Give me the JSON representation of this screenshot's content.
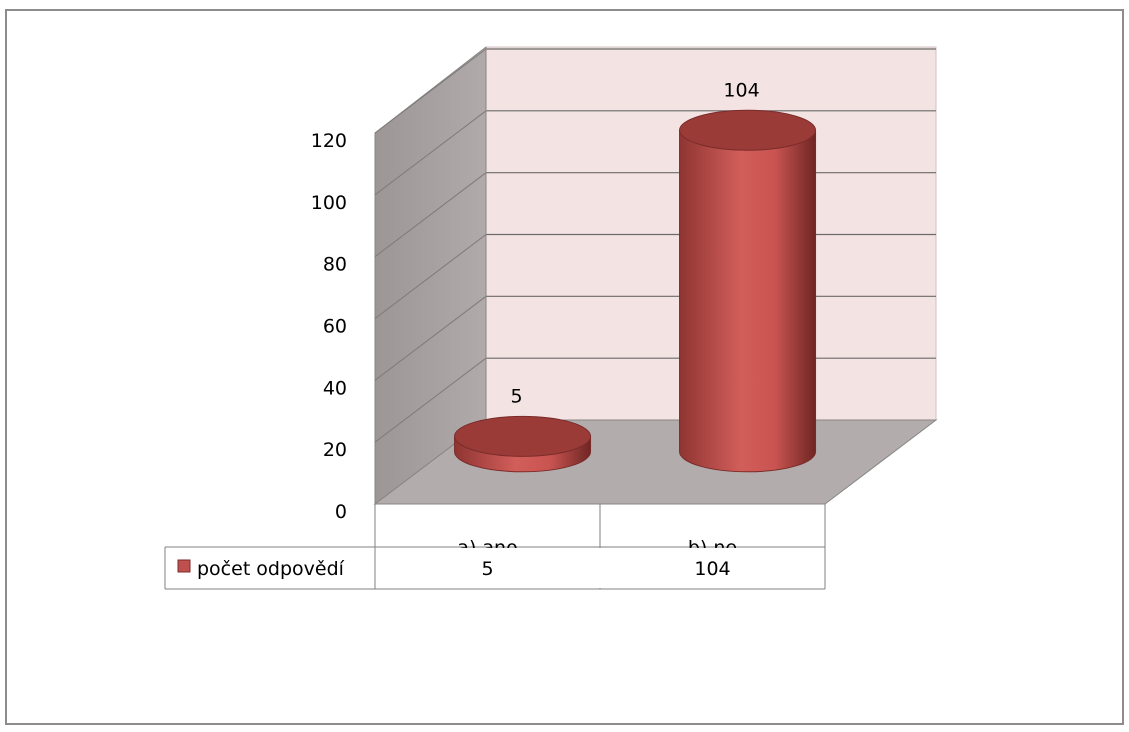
{
  "chart_data": {
    "type": "bar",
    "style": "3d-cylinder",
    "title": "",
    "xlabel": "",
    "ylabel": "",
    "categories": [
      "a) ano",
      "b) ne"
    ],
    "series": [
      {
        "name": "počet odpovědí",
        "values": [
          5,
          104
        ],
        "color": "#c0504d"
      }
    ],
    "data_labels": [
      "5",
      "104"
    ],
    "ylim": [
      0,
      120
    ],
    "yticks": [
      0,
      20,
      40,
      60,
      80,
      100,
      120
    ],
    "grid": true,
    "data_table": true,
    "colors": {
      "back_wall": "#f3e3e3",
      "side_wall": "#a8a2a2",
      "floor": "#b3acac",
      "bar": "#c0504d",
      "bar_dark": "#7a2c2a",
      "bar_top": "#9b3b38"
    }
  }
}
